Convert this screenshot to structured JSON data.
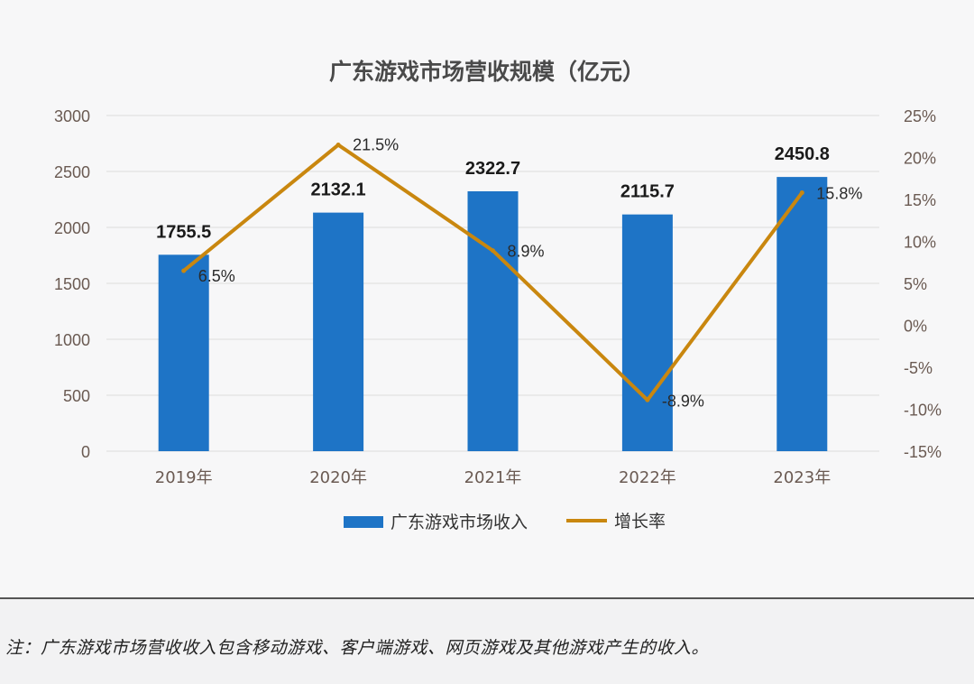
{
  "chart_data": {
    "type": "bar+line",
    "title": "广东游戏市场营收规模（亿元）",
    "categories": [
      "2019年",
      "2020年",
      "2021年",
      "2022年",
      "2023年"
    ],
    "series": [
      {
        "name": "广东游戏市场收入",
        "type": "bar",
        "axis": "left",
        "values": [
          1755.5,
          2132.1,
          2322.7,
          2115.7,
          2450.8
        ],
        "labels": [
          "1755.5",
          "2132.1",
          "2322.7",
          "2115.7",
          "2450.8"
        ]
      },
      {
        "name": "增长率",
        "type": "line",
        "axis": "right",
        "values": [
          6.5,
          21.5,
          8.9,
          -8.9,
          15.8
        ],
        "labels": [
          "6.5%",
          "21.5%",
          "8.9%",
          "-8.9%",
          "15.8%"
        ]
      }
    ],
    "y_left": {
      "ylim": [
        0,
        3000
      ],
      "ticks": [
        "0",
        "500",
        "1000",
        "1500",
        "2000",
        "2500",
        "3000"
      ]
    },
    "y_right": {
      "ylim": [
        -15,
        25
      ],
      "ticks": [
        "-15%",
        "-10%",
        "-5%",
        "0%",
        "5%",
        "10%",
        "15%",
        "20%",
        "25%"
      ]
    },
    "grid": true,
    "legend": "bottom",
    "colors": {
      "bar": "#1e74c6",
      "line": "#c9870f",
      "grid": "#dcdcdc",
      "axis_text": "#6a5a52",
      "title": "#4a4a4a"
    }
  },
  "footnote": "注：广东游戏市场营收收入包含移动游戏、客户端游戏、网页游戏及其他游戏产生的收入。"
}
